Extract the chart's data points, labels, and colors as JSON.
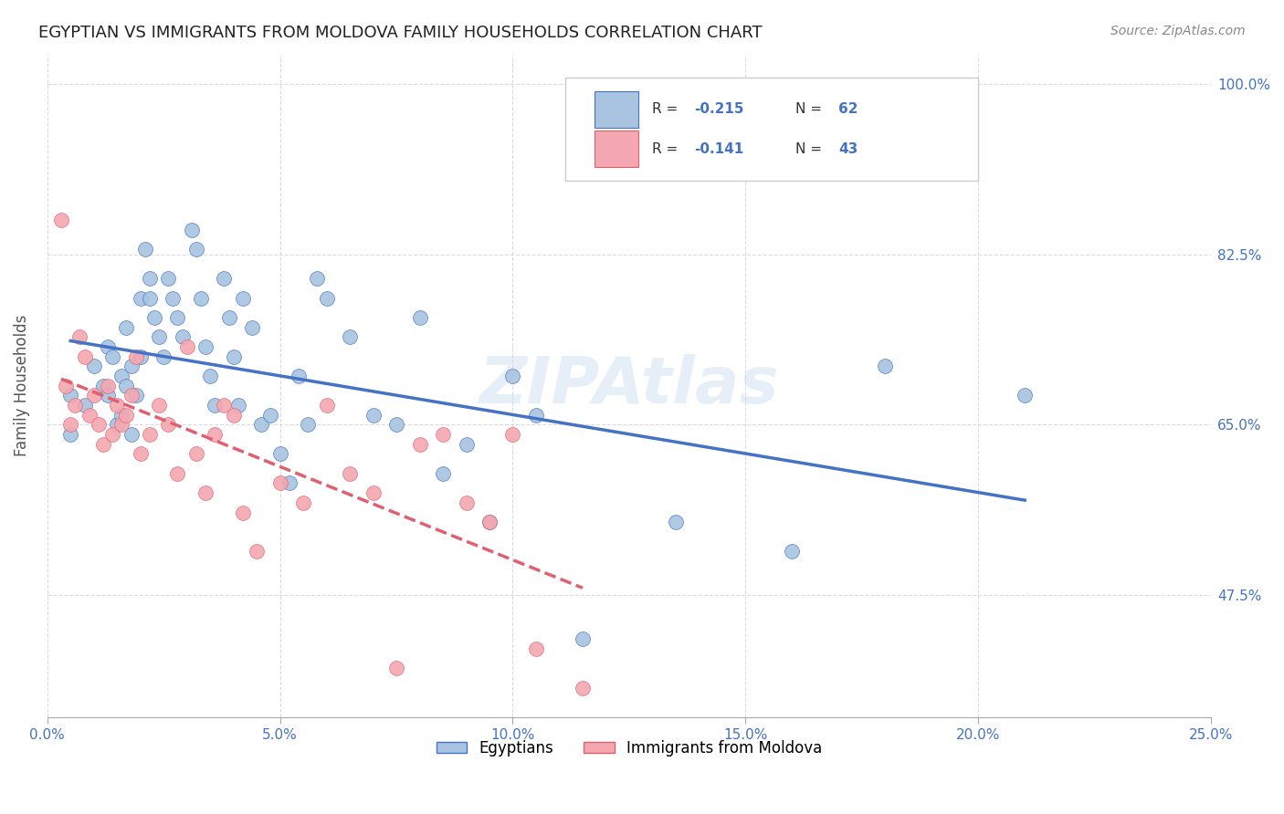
{
  "title": "EGYPTIAN VS IMMIGRANTS FROM MOLDOVA FAMILY HOUSEHOLDS CORRELATION CHART",
  "source": "Source: ZipAtlas.com",
  "ylabel": "Family Households",
  "legend_label1": "Egyptians",
  "legend_label2": "Immigrants from Moldova",
  "r1": "-0.215",
  "n1": "62",
  "r2": "-0.141",
  "n2": "43",
  "blue_color": "#a8c4e0",
  "pink_color": "#f4a7b0",
  "line_blue": "#4472c4",
  "line_pink": "#e06070",
  "blue_scatter_x": [
    0.005,
    0.005,
    0.008,
    0.01,
    0.012,
    0.013,
    0.013,
    0.014,
    0.015,
    0.016,
    0.016,
    0.017,
    0.017,
    0.018,
    0.018,
    0.019,
    0.02,
    0.02,
    0.021,
    0.022,
    0.022,
    0.023,
    0.024,
    0.025,
    0.026,
    0.027,
    0.028,
    0.029,
    0.031,
    0.032,
    0.033,
    0.034,
    0.035,
    0.036,
    0.038,
    0.039,
    0.04,
    0.041,
    0.042,
    0.044,
    0.046,
    0.048,
    0.05,
    0.052,
    0.054,
    0.056,
    0.058,
    0.06,
    0.065,
    0.07,
    0.075,
    0.08,
    0.085,
    0.09,
    0.095,
    0.1,
    0.105,
    0.115,
    0.135,
    0.16,
    0.18,
    0.21
  ],
  "blue_scatter_y": [
    0.68,
    0.64,
    0.67,
    0.71,
    0.69,
    0.73,
    0.68,
    0.72,
    0.65,
    0.7,
    0.66,
    0.75,
    0.69,
    0.64,
    0.71,
    0.68,
    0.78,
    0.72,
    0.83,
    0.8,
    0.78,
    0.76,
    0.74,
    0.72,
    0.8,
    0.78,
    0.76,
    0.74,
    0.85,
    0.83,
    0.78,
    0.73,
    0.7,
    0.67,
    0.8,
    0.76,
    0.72,
    0.67,
    0.78,
    0.75,
    0.65,
    0.66,
    0.62,
    0.59,
    0.7,
    0.65,
    0.8,
    0.78,
    0.74,
    0.66,
    0.65,
    0.76,
    0.6,
    0.63,
    0.55,
    0.7,
    0.66,
    0.43,
    0.55,
    0.52,
    0.71,
    0.68
  ],
  "pink_scatter_x": [
    0.003,
    0.004,
    0.005,
    0.006,
    0.007,
    0.008,
    0.009,
    0.01,
    0.011,
    0.012,
    0.013,
    0.014,
    0.015,
    0.016,
    0.017,
    0.018,
    0.019,
    0.02,
    0.022,
    0.024,
    0.026,
    0.028,
    0.03,
    0.032,
    0.034,
    0.036,
    0.038,
    0.04,
    0.042,
    0.045,
    0.05,
    0.055,
    0.06,
    0.065,
    0.07,
    0.075,
    0.08,
    0.085,
    0.09,
    0.095,
    0.1,
    0.105,
    0.115
  ],
  "pink_scatter_y": [
    0.86,
    0.69,
    0.65,
    0.67,
    0.74,
    0.72,
    0.66,
    0.68,
    0.65,
    0.63,
    0.69,
    0.64,
    0.67,
    0.65,
    0.66,
    0.68,
    0.72,
    0.62,
    0.64,
    0.67,
    0.65,
    0.6,
    0.73,
    0.62,
    0.58,
    0.64,
    0.67,
    0.66,
    0.56,
    0.52,
    0.59,
    0.57,
    0.67,
    0.6,
    0.58,
    0.4,
    0.63,
    0.64,
    0.57,
    0.55,
    0.64,
    0.42,
    0.38
  ],
  "xlim": [
    0.0,
    0.25
  ],
  "ylim": [
    0.35,
    1.03
  ],
  "title_color": "#222222",
  "source_color": "#888888",
  "tick_color": "#4472c4",
  "grid_color": "#cccccc",
  "xticks": [
    0.0,
    0.05,
    0.1,
    0.15,
    0.2,
    0.25
  ],
  "xticklabels": [
    "0.0%",
    "5.0%",
    "10.0%",
    "15.0%",
    "20.0%",
    "25.0%"
  ],
  "yticks": [
    0.475,
    0.65,
    0.825,
    1.0
  ],
  "yticklabels": [
    "47.5%",
    "65.0%",
    "82.5%",
    "100.0%"
  ]
}
